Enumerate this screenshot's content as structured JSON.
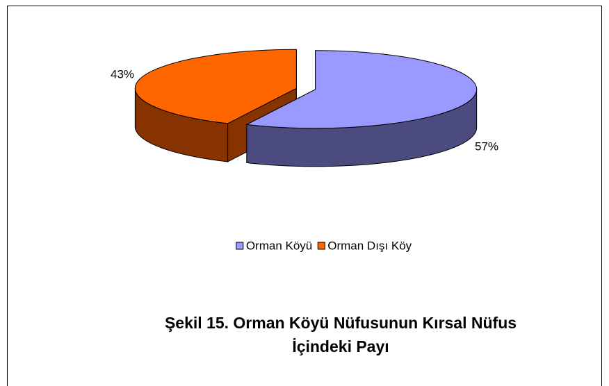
{
  "chart_data": {
    "type": "pie3d",
    "title": "Şekil 15. Orman Köyü Nüfusunun Kırsal Nüfus İçindeki Payı",
    "categories": [
      "Orman Köyü",
      "Orman Dışı Köy"
    ],
    "values": [
      57,
      43
    ],
    "value_labels": [
      "57%",
      "43%"
    ],
    "colors": [
      "#9999ff",
      "#ff6600"
    ],
    "side_colors": [
      "#4b4b80",
      "#863300"
    ],
    "legend": "bottom"
  }
}
